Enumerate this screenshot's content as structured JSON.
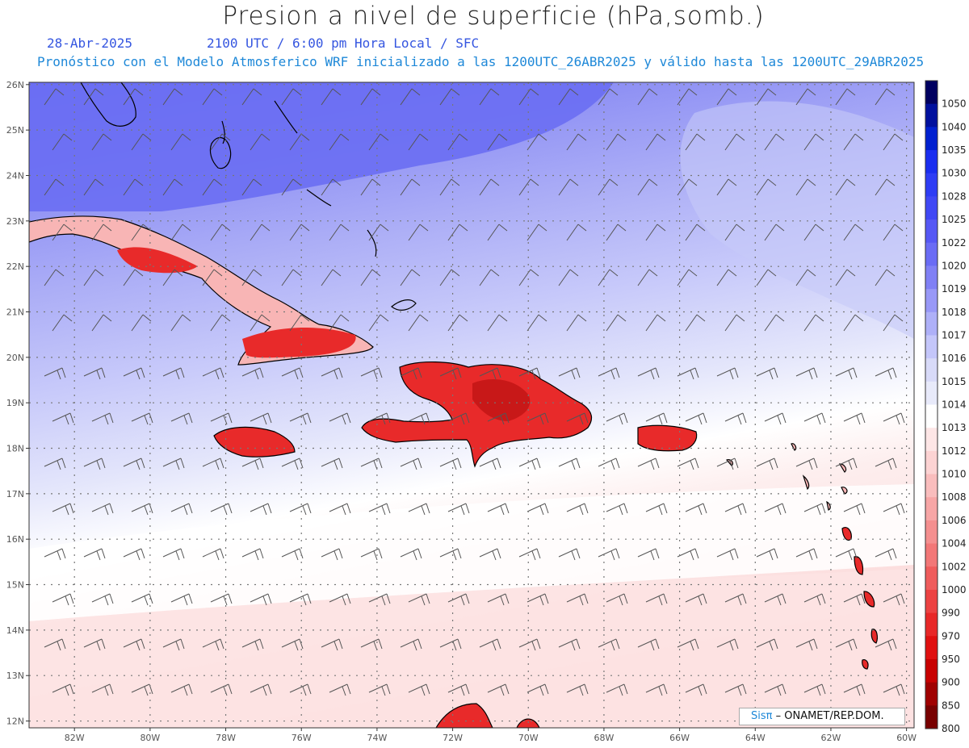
{
  "header": {
    "title": "Presion a nivel de superficie (hPa,somb.)",
    "date": "28-Abr-2025",
    "valid_time": "2100 UTC / 6:00 pm Hora Local / SFC",
    "subtitle": "Pronóstico con el Modelo Atmosferico WRF inicializado a las 1200UTC_26ABR2025 y válido hasta las  1200UTC_29ABR2025"
  },
  "map": {
    "lat_labels": [
      "26N",
      "25N",
      "24N",
      "23N",
      "22N",
      "21N",
      "20N",
      "19N",
      "18N",
      "17N",
      "16N",
      "15N",
      "14N",
      "13N",
      "12N"
    ],
    "lon_labels": [
      "82W",
      "80W",
      "78W",
      "76W",
      "74W",
      "72W",
      "70W",
      "68W",
      "66W",
      "64W",
      "62W",
      "60W"
    ],
    "colors": {
      "land_high": "#e8232a",
      "land_low": "#f89a9a",
      "coast": "#000000",
      "barb": "#555555",
      "grid": "#888888"
    }
  },
  "colorbar": {
    "levels": [
      "1050",
      "1040",
      "1035",
      "1030",
      "1028",
      "1025",
      "1022",
      "1020",
      "1019",
      "1018",
      "1017",
      "1016",
      "1015",
      "1014",
      "1013",
      "1012",
      "1010",
      "1008",
      "1006",
      "1004",
      "1002",
      "1000",
      "990",
      "970",
      "950",
      "900",
      "850",
      "800"
    ],
    "colors": [
      "#000060",
      "#00109e",
      "#0020d0",
      "#1a2ef0",
      "#2e3df5",
      "#4048f5",
      "#5658f5",
      "#6a6cf5",
      "#8080f5",
      "#9898f7",
      "#aeb0f8",
      "#c4c6fa",
      "#d8daf8",
      "#e8eafa",
      "#ffffff",
      "#fde6e6",
      "#fcd3d3",
      "#f9bdbd",
      "#f7a6a6",
      "#f48f8f",
      "#f27777",
      "#ef5c5c",
      "#ec4242",
      "#e82828",
      "#e01010",
      "#c80000",
      "#a00000",
      "#780000"
    ]
  },
  "credit": {
    "brand": "Sisπ",
    "text": " – ONAMET/REP.DOM."
  }
}
